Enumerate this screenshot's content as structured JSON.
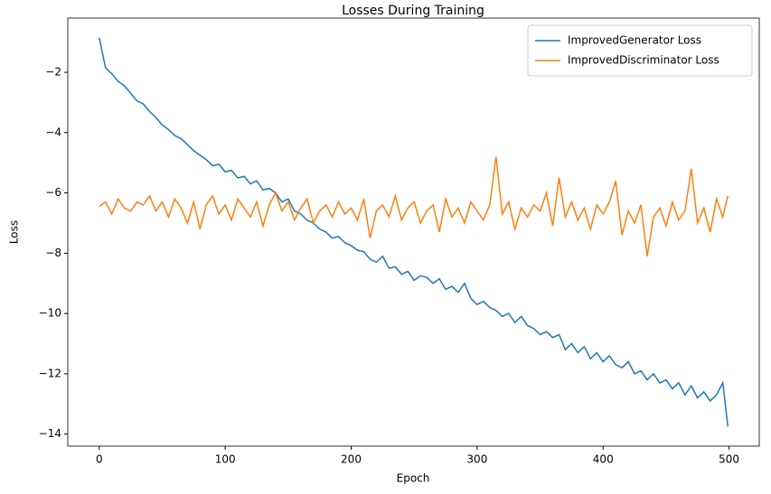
{
  "chart_data": {
    "type": "line",
    "title": "Losses During Training",
    "x_label": "Epoch",
    "y_label": "Loss",
    "x": [
      0,
      5,
      10,
      15,
      20,
      25,
      30,
      35,
      40,
      45,
      50,
      55,
      60,
      65,
      70,
      75,
      80,
      85,
      90,
      95,
      100,
      105,
      110,
      115,
      120,
      125,
      130,
      135,
      140,
      145,
      150,
      155,
      160,
      165,
      170,
      175,
      180,
      185,
      190,
      195,
      200,
      205,
      210,
      215,
      220,
      225,
      230,
      235,
      240,
      245,
      250,
      255,
      260,
      265,
      270,
      275,
      280,
      285,
      290,
      295,
      300,
      305,
      310,
      315,
      320,
      325,
      330,
      335,
      340,
      345,
      350,
      355,
      360,
      365,
      370,
      375,
      380,
      385,
      390,
      395,
      400,
      405,
      410,
      415,
      420,
      425,
      430,
      435,
      440,
      445,
      450,
      455,
      460,
      465,
      470,
      475,
      480,
      485,
      490,
      495,
      499
    ],
    "series": [
      {
        "name": "ImprovedGenerator Loss",
        "color": "#1f77b4",
        "values": [
          -0.85,
          -1.85,
          -2.05,
          -2.3,
          -2.45,
          -2.7,
          -2.95,
          -3.05,
          -3.3,
          -3.5,
          -3.75,
          -3.9,
          -4.1,
          -4.2,
          -4.4,
          -4.6,
          -4.75,
          -4.9,
          -5.1,
          -5.05,
          -5.3,
          -5.25,
          -5.5,
          -5.45,
          -5.7,
          -5.6,
          -5.9,
          -5.85,
          -6.0,
          -6.3,
          -6.2,
          -6.6,
          -6.7,
          -6.9,
          -7.0,
          -7.2,
          -7.3,
          -7.5,
          -7.45,
          -7.65,
          -7.75,
          -7.9,
          -7.95,
          -8.2,
          -8.3,
          -8.1,
          -8.5,
          -8.45,
          -8.7,
          -8.6,
          -8.9,
          -8.75,
          -8.8,
          -9.0,
          -8.85,
          -9.2,
          -9.1,
          -9.3,
          -9.0,
          -9.5,
          -9.7,
          -9.6,
          -9.8,
          -9.9,
          -10.1,
          -10.0,
          -10.3,
          -10.1,
          -10.4,
          -10.5,
          -10.7,
          -10.6,
          -10.8,
          -10.7,
          -11.2,
          -11.0,
          -11.3,
          -11.1,
          -11.5,
          -11.3,
          -11.6,
          -11.4,
          -11.7,
          -11.8,
          -11.6,
          -12.0,
          -11.9,
          -12.2,
          -12.0,
          -12.3,
          -12.2,
          -12.5,
          -12.3,
          -12.7,
          -12.4,
          -12.8,
          -12.6,
          -12.9,
          -12.7,
          -12.3,
          -13.75
        ]
      },
      {
        "name": "ImprovedDiscriminator Loss",
        "color": "#ff7f0e",
        "values": [
          -6.45,
          -6.3,
          -6.7,
          -6.2,
          -6.5,
          -6.6,
          -6.3,
          -6.4,
          -6.1,
          -6.6,
          -6.3,
          -6.8,
          -6.2,
          -6.5,
          -7.0,
          -6.3,
          -7.2,
          -6.4,
          -6.1,
          -6.7,
          -6.4,
          -6.9,
          -6.2,
          -6.5,
          -6.8,
          -6.3,
          -7.1,
          -6.4,
          -6.0,
          -6.6,
          -6.3,
          -6.9,
          -6.5,
          -6.2,
          -7.0,
          -6.6,
          -6.4,
          -6.8,
          -6.3,
          -6.7,
          -6.5,
          -6.9,
          -6.2,
          -7.5,
          -6.6,
          -6.4,
          -6.8,
          -6.1,
          -6.9,
          -6.5,
          -6.3,
          -7.0,
          -6.6,
          -6.4,
          -7.3,
          -6.2,
          -6.8,
          -6.5,
          -7.0,
          -6.3,
          -6.6,
          -6.9,
          -6.4,
          -4.8,
          -6.7,
          -6.3,
          -7.2,
          -6.5,
          -6.8,
          -6.4,
          -6.6,
          -6.0,
          -7.1,
          -5.5,
          -6.8,
          -6.3,
          -6.9,
          -6.5,
          -7.2,
          -6.4,
          -6.7,
          -6.3,
          -5.6,
          -7.4,
          -6.6,
          -7.0,
          -6.4,
          -8.1,
          -6.8,
          -6.5,
          -7.1,
          -6.3,
          -6.9,
          -6.6,
          -5.2,
          -7.0,
          -6.5,
          -7.3,
          -6.2,
          -6.8,
          -6.1
        ]
      }
    ],
    "xlim": [
      -24.95,
      523.95
    ],
    "xticks": [
      0,
      100,
      200,
      300,
      400,
      500
    ],
    "ylim": [
      -14.4,
      -0.2
    ],
    "yticks": [
      {
        "value": -14,
        "label": "−14"
      },
      {
        "value": -12,
        "label": "−12"
      },
      {
        "value": -10,
        "label": "−10"
      },
      {
        "value": -8,
        "label": "−8"
      },
      {
        "value": -6,
        "label": "−6"
      },
      {
        "value": -4,
        "label": "−4"
      },
      {
        "value": -2,
        "label": "−2"
      }
    ],
    "legend": "upper right"
  }
}
